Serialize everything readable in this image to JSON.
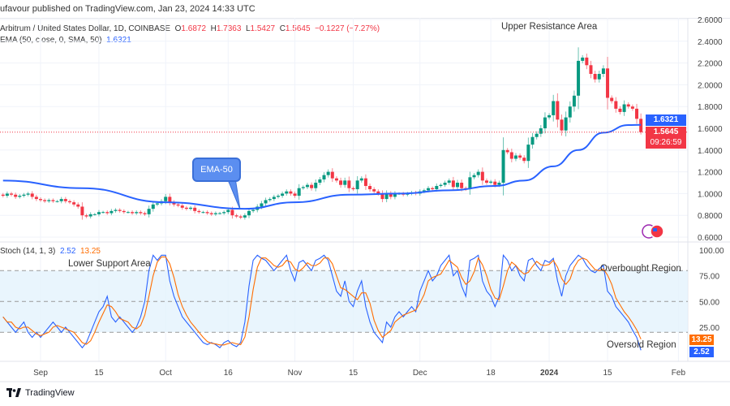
{
  "header": {
    "published": "ufavour published on TradingView.com, Jan 23, 2024 14:33 UTC",
    "symbol": "Arbitrum / United States Dollar, 1D, COINBASE",
    "o_label": "O",
    "o": "1.6872",
    "h_label": "H",
    "h": "1.7363",
    "l_label": "L",
    "l": "1.5427",
    "c_label": "C",
    "c": "1.5645",
    "change": "−0.1227 (−7.27%)",
    "ema_label": "EMA (50, close, 0, SMA, 50)",
    "ema_value": "1.6321"
  },
  "annotations": {
    "upper": "Upper Resistance Area",
    "lower": "Lower Support Area",
    "overbought": "Overbought Region",
    "oversold": "Oversold Region",
    "ema_callout": "EMA-50"
  },
  "price_tags": {
    "ema": "1.6321",
    "last": "1.5645",
    "countdown": "09:26:59"
  },
  "stoch": {
    "label": "Stoch (14, 1, 3)",
    "k_value": "2.52",
    "d_value": "13.25"
  },
  "footer": {
    "brand": "TradingView"
  },
  "colors": {
    "up": "#089981",
    "down": "#f23645",
    "ema": "#2962ff",
    "k": "#2962ff",
    "d": "#ff6d00",
    "band": "#e3f2fd"
  },
  "chart_data": [
    {
      "type": "candlestick",
      "title": "Arbitrum / United States Dollar, 1D, COINBASE",
      "start_date": "2023-08-23",
      "ylim": [
        0.6,
        2.6
      ],
      "yticks": [
        "2.6000",
        "2.4000",
        "2.2000",
        "2.0000",
        "1.8000",
        "1.6000",
        "1.4000",
        "1.2000",
        "1.0000",
        "0.8000",
        "0.6000"
      ],
      "xticks": [
        "Sep",
        "15",
        "Oct",
        "16",
        "Nov",
        "15",
        "Dec",
        "18",
        "2024",
        "15",
        "Feb"
      ],
      "xtick_dates": [
        "2023-09-01",
        "2023-09-15",
        "2023-10-01",
        "2023-10-16",
        "2023-11-01",
        "2023-11-15",
        "2023-12-01",
        "2023-12-18",
        "2024-01-01",
        "2024-01-15",
        "2024-02-01"
      ],
      "close": [
        0.98,
        1.0,
        0.99,
        0.97,
        0.98,
        0.99,
        1.0,
        0.97,
        0.95,
        0.94,
        0.93,
        0.94,
        0.93,
        0.93,
        0.95,
        0.93,
        0.92,
        0.9,
        0.88,
        0.8,
        0.79,
        0.81,
        0.81,
        0.83,
        0.83,
        0.82,
        0.84,
        0.85,
        0.84,
        0.83,
        0.83,
        0.82,
        0.83,
        0.82,
        0.81,
        0.86,
        0.9,
        0.91,
        0.93,
        0.97,
        0.92,
        0.9,
        0.89,
        0.87,
        0.86,
        0.87,
        0.84,
        0.83,
        0.83,
        0.82,
        0.81,
        0.82,
        0.82,
        0.83,
        0.85,
        0.8,
        0.79,
        0.78,
        0.8,
        0.84,
        0.85,
        0.88,
        0.91,
        0.94,
        0.95,
        0.97,
        0.98,
        1.0,
        1.02,
        1.0,
        0.98,
        1.05,
        1.06,
        1.08,
        1.05,
        1.1,
        1.13,
        1.17,
        1.2,
        1.14,
        1.12,
        1.08,
        1.12,
        1.05,
        1.04,
        1.12,
        1.14,
        1.07,
        1.04,
        1.02,
        1.0,
        0.95,
        1.0,
        0.97,
        1.0,
        1.0,
        0.99,
        1.0,
        1.01,
        1.0,
        1.02,
        1.03,
        1.05,
        1.04,
        1.07,
        1.08,
        1.1,
        1.12,
        1.06,
        1.1,
        1.05,
        1.04,
        1.15,
        1.17,
        1.2,
        1.12,
        1.1,
        1.11,
        1.08,
        1.1,
        1.4,
        1.38,
        1.32,
        1.35,
        1.33,
        1.3,
        1.45,
        1.52,
        1.55,
        1.6,
        1.7,
        1.72,
        1.85,
        1.68,
        1.58,
        1.7,
        1.8,
        1.9,
        2.22,
        2.25,
        2.18,
        2.1,
        2.05,
        2.1,
        2.15,
        1.88,
        1.85,
        1.78,
        1.75,
        1.82,
        1.8,
        1.78,
        1.6872,
        1.5645
      ],
      "last_candle": {
        "open": 1.6872,
        "high": 1.7363,
        "low": 1.5427,
        "close": 1.5645
      },
      "ema50": [
        [
          "2023-08-23",
          1.12
        ],
        [
          "2023-09-11",
          1.05
        ],
        [
          "2023-10-01",
          0.92
        ],
        [
          "2023-10-20",
          0.86
        ],
        [
          "2023-11-01",
          0.92
        ],
        [
          "2023-11-14",
          0.99
        ],
        [
          "2023-11-26",
          1.0
        ],
        [
          "2023-12-08",
          1.03
        ],
        [
          "2023-12-19",
          1.07
        ],
        [
          "2023-12-26",
          1.12
        ],
        [
          "2024-01-02",
          1.25
        ],
        [
          "2024-01-08",
          1.4
        ],
        [
          "2024-01-14",
          1.56
        ],
        [
          "2024-01-20",
          1.63
        ],
        [
          "2024-01-23",
          1.6321
        ]
      ]
    },
    {
      "type": "line",
      "title": "Stoch (14, 1, 3)",
      "start_date": "2023-08-23",
      "ylim": [
        0,
        100
      ],
      "yticks": [
        "100.00",
        "75.00",
        "50.00",
        "25.00"
      ],
      "bands": {
        "upper": 80,
        "middle": 50,
        "lower": 20
      },
      "series": [
        {
          "name": "%K",
          "values": [
            35,
            30,
            25,
            20,
            25,
            30,
            20,
            15,
            20,
            15,
            20,
            25,
            30,
            25,
            20,
            25,
            20,
            15,
            10,
            5,
            10,
            20,
            30,
            40,
            45,
            55,
            35,
            30,
            35,
            30,
            25,
            20,
            25,
            35,
            50,
            80,
            95,
            90,
            95,
            95,
            70,
            55,
            45,
            35,
            30,
            25,
            20,
            15,
            10,
            8,
            10,
            8,
            5,
            10,
            12,
            8,
            6,
            10,
            30,
            65,
            90,
            95,
            92,
            90,
            85,
            80,
            85,
            90,
            95,
            80,
            70,
            88,
            90,
            85,
            80,
            90,
            92,
            95,
            90,
            75,
            60,
            55,
            70,
            50,
            45,
            60,
            70,
            45,
            30,
            20,
            15,
            10,
            30,
            25,
            35,
            40,
            35,
            40,
            45,
            40,
            60,
            70,
            80,
            70,
            75,
            85,
            90,
            95,
            75,
            80,
            65,
            55,
            90,
            92,
            95,
            70,
            60,
            55,
            45,
            55,
            95,
            90,
            80,
            85,
            75,
            70,
            90,
            92,
            85,
            80,
            90,
            88,
            92,
            70,
            55,
            75,
            85,
            90,
            95,
            92,
            85,
            80,
            78,
            82,
            85,
            60,
            55,
            45,
            40,
            35,
            30,
            22,
            15,
            2.52
          ]
        },
        {
          "name": "%D",
          "smoothing": 3,
          "last": 13.25
        }
      ]
    }
  ]
}
